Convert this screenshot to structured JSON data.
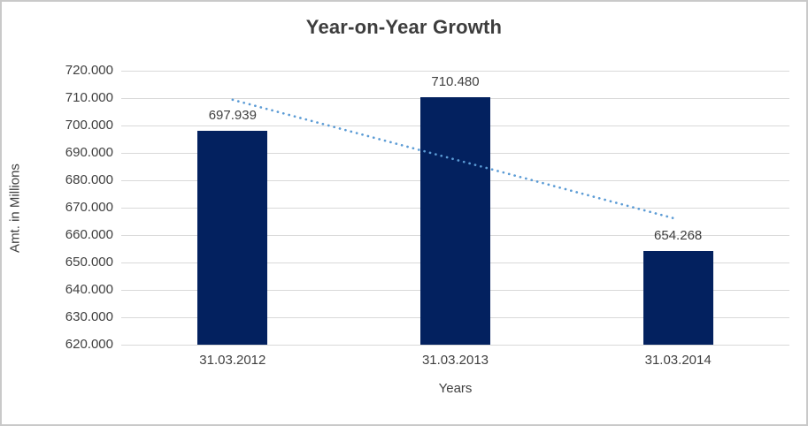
{
  "chart_data": {
    "type": "bar",
    "title": "Year-on-Year Growth",
    "xlabel": "Years",
    "ylabel": "Amt. in Millions",
    "categories": [
      "31.03.2012",
      "31.03.2013",
      "31.03.2014"
    ],
    "values": [
      697939,
      710480,
      654268
    ],
    "value_labels": [
      "697.939",
      "710.480",
      "654.268"
    ],
    "ylim": [
      620000,
      720000
    ],
    "ytick_values": [
      620000,
      630000,
      640000,
      650000,
      660000,
      670000,
      680000,
      690000,
      700000,
      710000,
      720000
    ],
    "ytick_labels": [
      "620.000",
      "630.000",
      "640.000",
      "650.000",
      "660.000",
      "670.000",
      "680.000",
      "690.000",
      "700.000",
      "710.000",
      "720.000"
    ],
    "grid": true,
    "legend": "none",
    "trendline": {
      "type": "linear",
      "style": "dotted",
      "start_value": 709398,
      "end_value": 665727
    },
    "colors": {
      "bar": "#03215f",
      "trendline": "#5b9bd5",
      "gridline": "#d9d9d9",
      "axis_line": "#d9d9d9",
      "text": "#404040",
      "title_text": "#3d3d3d",
      "frame_border": "#c9c9c9"
    }
  }
}
